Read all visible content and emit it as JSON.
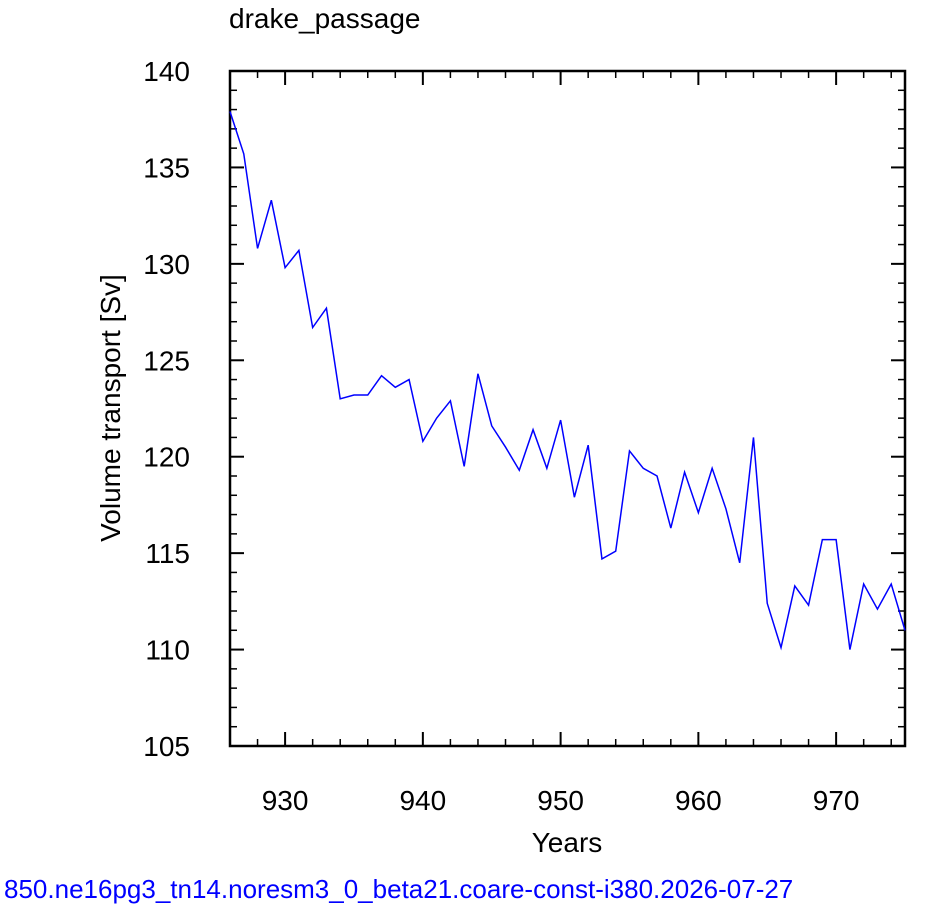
{
  "chart_data": {
    "type": "line",
    "title": "drake_passage",
    "xlabel": "Years",
    "ylabel": "Volume transport [Sv]",
    "xlim": [
      926,
      975
    ],
    "ylim": [
      105,
      140
    ],
    "x_ticks": [
      930,
      940,
      950,
      960,
      970
    ],
    "y_ticks": [
      105,
      110,
      115,
      120,
      125,
      130,
      135,
      140
    ],
    "x_minor_step": 2,
    "y_minor_step": 1,
    "line_color": "#0000ff",
    "series": [
      {
        "x": [
          926,
          927,
          928,
          929,
          930,
          931,
          932,
          933,
          934,
          935,
          936,
          937,
          938,
          939,
          940,
          941,
          942,
          943,
          944,
          945,
          946,
          947,
          948,
          949,
          950,
          951,
          952,
          953,
          954,
          955,
          956,
          957,
          958,
          959,
          960,
          961,
          962,
          963,
          964,
          965,
          966,
          967,
          968,
          969,
          970,
          971,
          972,
          973,
          974,
          975
        ],
        "y": [
          137.9,
          135.7,
          130.8,
          133.3,
          129.8,
          130.7,
          126.7,
          127.7,
          123.0,
          123.2,
          123.2,
          124.2,
          123.6,
          124.0,
          120.8,
          122.0,
          122.9,
          119.5,
          124.3,
          121.6,
          120.5,
          119.3,
          121.4,
          119.4,
          121.9,
          117.9,
          120.6,
          114.7,
          115.1,
          120.3,
          119.4,
          119.0,
          116.3,
          119.2,
          117.1,
          119.4,
          117.3,
          114.5,
          121.0,
          112.4,
          110.1,
          113.3,
          112.3,
          115.7,
          115.7,
          110.0,
          113.4,
          112.1,
          113.4,
          111.0
        ]
      }
    ]
  },
  "footer": {
    "text": "850.ne16pg3_tn14.noresm3_0_beta21.coare-const-i380.2026-07-27",
    "color": "#0000ff"
  }
}
